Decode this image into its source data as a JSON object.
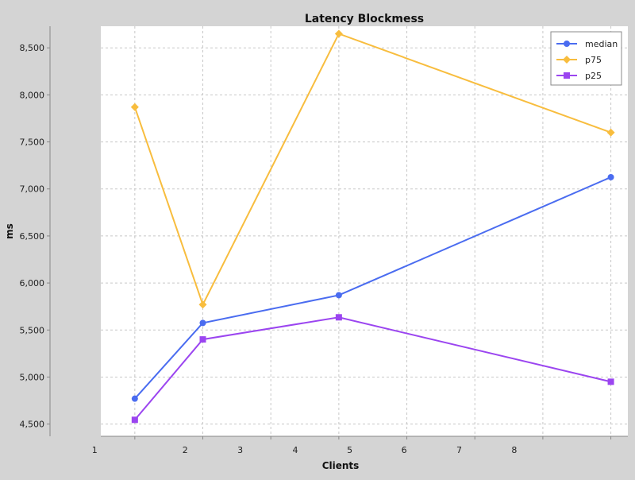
{
  "chart_data": {
    "type": "line",
    "title": "Latency Blockmess",
    "xlabel": "Clients",
    "ylabel": "ms",
    "x_ticks": [
      1,
      2,
      3,
      4,
      5,
      6,
      7,
      8
    ],
    "y_ticks": [
      4500,
      5000,
      5500,
      6000,
      6500,
      7000,
      7500,
      8000,
      8500
    ],
    "y_tick_labels": [
      "4,500",
      "5,000",
      "5,500",
      "6,000",
      "6,500",
      "7,000",
      "7,500",
      "8,000",
      "8,500"
    ],
    "xlim": [
      1,
      8.75
    ],
    "ylim": [
      4370,
      8730
    ],
    "grid": true,
    "legend_position": "top-right",
    "x": [
      1.5,
      2.5,
      4.5,
      8.5
    ],
    "series": [
      {
        "name": "median",
        "color": "#4a6cf0",
        "marker": "circle",
        "values": [
          4770,
          5575,
          5870,
          7125
        ]
      },
      {
        "name": "p75",
        "color": "#f8bd3e",
        "marker": "diamond",
        "values": [
          7870,
          5770,
          8650,
          7600
        ]
      },
      {
        "name": "p25",
        "color": "#9b45f0",
        "marker": "square",
        "values": [
          4545,
          5400,
          5635,
          4950
        ]
      }
    ]
  }
}
